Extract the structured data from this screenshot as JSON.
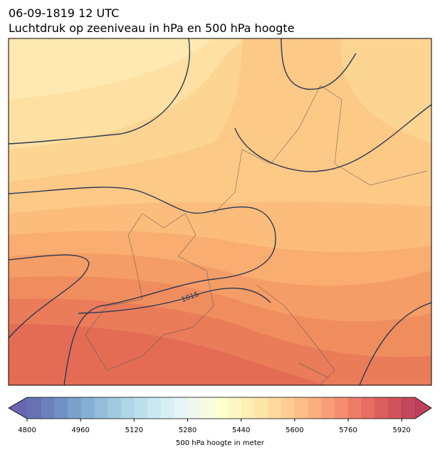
{
  "header": {
    "title": "06-09-1819 12 UTC",
    "subtitle": "Luchtdruk op zeeniveau in hPa en 500 hPa hoogte"
  },
  "map": {
    "contour_label": "1015"
  },
  "colorbar": {
    "label": "500 hPa hoogte in meter",
    "lim": [
      4800,
      5960
    ],
    "ticks": [
      4800,
      4960,
      5120,
      5280,
      5440,
      5600,
      5760,
      5920
    ],
    "levels": [
      4800,
      4840,
      4880,
      4920,
      4960,
      5000,
      5040,
      5080,
      5120,
      5160,
      5200,
      5240,
      5280,
      5320,
      5360,
      5400,
      5440,
      5480,
      5520,
      5560,
      5600,
      5640,
      5680,
      5720,
      5760,
      5800,
      5840,
      5880,
      5920,
      5960
    ],
    "extend": "both"
  }
}
